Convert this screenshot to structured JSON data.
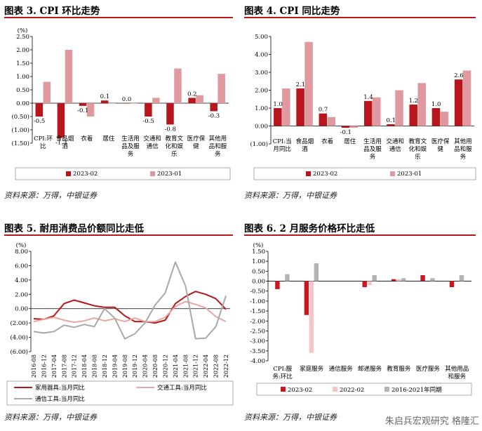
{
  "chart_data": [
    {
      "id": "c1",
      "type": "bar",
      "title": "图表 3. CPI 环比走势",
      "ylabel": "(%)",
      "ylim": [
        -1.5,
        2.5
      ],
      "yticks": [
        2.5,
        2.0,
        1.5,
        1.0,
        0.5,
        0.0,
        -0.5,
        -1.0,
        -1.5
      ],
      "ytick_labels": [
        "2.50",
        "2.00",
        "1.50",
        "1.00",
        "0.50",
        "0.00",
        "(0.50)",
        "(1.00)",
        "(1.50)"
      ],
      "categories": [
        "CPI:环\n比",
        "食品烟\n酒",
        "衣着",
        "居住",
        "生活用\n品及服\n务",
        "交通和\n通信",
        "教育文\n化和娱\n乐",
        "医疗保\n健",
        "其他用\n品和服\n务"
      ],
      "series": [
        {
          "name": "2023-02",
          "color": "#b8151c",
          "values": [
            -0.5,
            -1.3,
            -0.1,
            0.1,
            0.0,
            -0.5,
            -0.8,
            0.2,
            -0.3
          ],
          "labeled": true
        },
        {
          "name": "2023-01",
          "color": "#e09a9f",
          "values": [
            0.8,
            2.0,
            -0.5,
            0.0,
            0.0,
            0.2,
            1.3,
            0.3,
            1.1
          ],
          "labeled": false
        }
      ],
      "data_labels": [
        "-0.5",
        "-1.3",
        "-0.1",
        "0.1",
        "0.0",
        "-0.5",
        "-0.8",
        "0.2",
        "-0.3"
      ],
      "legend": "bottom"
    },
    {
      "id": "c2",
      "type": "bar",
      "title": "图表 4. CPI 同比走势",
      "ylim": [
        -1.0,
        5.0
      ],
      "yticks": [
        5.0,
        4.0,
        3.0,
        2.0,
        1.0,
        0.0,
        -1.0
      ],
      "ytick_labels": [
        "5.00",
        "4.00",
        "3.00",
        "2.00",
        "1.00",
        "0.00",
        "(1.00)"
      ],
      "categories": [
        "CPI:当\n月同比",
        "食品烟\n酒",
        "衣着",
        "居住",
        "生活用\n品及服\n务",
        "交通和\n通信",
        "教育文\n化和娱\n乐",
        "医疗保\n健",
        "其他用\n品和服\n务"
      ],
      "series": [
        {
          "name": "2023-02",
          "color": "#b8151c",
          "values": [
            1.0,
            2.1,
            0.7,
            -0.1,
            1.4,
            0.1,
            1.2,
            1.0,
            2.6
          ],
          "labeled": true
        },
        {
          "name": "2023-01",
          "color": "#e09a9f",
          "values": [
            2.1,
            4.7,
            0.5,
            -0.1,
            1.6,
            2.0,
            2.4,
            0.8,
            3.1
          ],
          "labeled": false
        }
      ],
      "data_labels": [
        "1.0",
        "2.1",
        "0.7",
        "-0.1",
        "1.4",
        "0.1",
        "1.2",
        "1.0",
        "2.6"
      ],
      "legend": "bottom"
    },
    {
      "id": "c3",
      "type": "line",
      "title": "图表 5. 耐用消费品价额同比走低",
      "ylabel": "(%)",
      "ylim": [
        -6.0,
        8.0
      ],
      "yticks": [
        8.0,
        6.0,
        4.0,
        2.0,
        0.0,
        -2.0,
        -4.0,
        -6.0
      ],
      "ytick_labels": [
        "8.00",
        "6.00",
        "4.00",
        "2.00",
        "0.00",
        "(2.00)",
        "(4.00)",
        "(6.00)"
      ],
      "x": [
        "2016-08",
        "2016-12",
        "2017-04",
        "2017-08",
        "2017-12",
        "2018-04",
        "2018-08",
        "2018-12",
        "2019-04",
        "2019-08",
        "2019-12",
        "2020-04",
        "2020-08",
        "2020-12",
        "2021-04",
        "2021-08",
        "2021-12",
        "2022-04",
        "2022-08",
        "2022-12"
      ],
      "series": [
        {
          "name": "家用器具:当月同比",
          "color": "#b8151c",
          "values": [
            -1.4,
            -1.5,
            -1.0,
            0.7,
            1.2,
            0.8,
            0.4,
            0.2,
            0.2,
            -1.0,
            -1.8,
            -1.8,
            -2.0,
            -1.6,
            0.7,
            1.7,
            2.4,
            2.0,
            1.4,
            -0.1
          ]
        },
        {
          "name": "交通工具:当月同比",
          "color": "#e8a7a2",
          "values": [
            -1.8,
            -1.5,
            -1.2,
            -1.6,
            -1.9,
            -1.7,
            -1.3,
            -1.7,
            -1.4,
            -1.8,
            -1.3,
            -1.8,
            -1.8,
            -1.2,
            0.3,
            1.0,
            0.6,
            0.1,
            -1.1,
            -1.8
          ]
        },
        {
          "name": "通信工具:当月同比",
          "color": "#a8a8a8",
          "values": [
            -3.2,
            -3.4,
            -3.2,
            -2.3,
            -2.6,
            -2.2,
            -2.5,
            0.0,
            -1.3,
            -4.2,
            -3.5,
            -2.0,
            0.5,
            2.2,
            6.5,
            3.2,
            -4.2,
            -4.1,
            -2.5,
            1.8
          ]
        }
      ],
      "legend": "bottom"
    },
    {
      "id": "c4",
      "type": "bar",
      "title": "图表 6. 2 月服务价格环比走低",
      "ylabel": "(%)",
      "ylim": [
        -4.0,
        1.5
      ],
      "yticks": [
        1.5,
        1.0,
        0.5,
        0.0,
        -0.5,
        -1.0,
        -1.5,
        -2.0,
        -2.5,
        -3.0,
        -3.5,
        -4.0
      ],
      "ytick_labels": [
        "1.50",
        "1.00",
        "0.50",
        "0.00",
        "-0.50",
        "-1.00",
        "-1.50",
        "-2.00",
        "-2.50",
        "-3.00",
        "-3.50",
        "-4.00"
      ],
      "categories": [
        "CPI:服\n务:环比",
        "家庭服务",
        "通信服务",
        "邮递服务",
        "教育服务",
        "医疗服务",
        "其他用品\n和服务"
      ],
      "series": [
        {
          "name": "2023-02",
          "color": "#c8171e",
          "values": [
            -0.4,
            -1.7,
            0.0,
            -0.3,
            0.1,
            0.3,
            -0.3
          ]
        },
        {
          "name": "2022-02",
          "color": "#f2c6c8",
          "values": [
            0.0,
            -3.6,
            0.0,
            -0.2,
            0.1,
            0.0,
            0.0
          ]
        },
        {
          "name": "2016-2021年同期",
          "color": "#b3b3b3",
          "values": [
            0.35,
            0.9,
            0.0,
            0.3,
            0.15,
            0.15,
            0.3
          ]
        }
      ],
      "legend": "bottom"
    }
  ],
  "sources": {
    "c1": "资料来源：万得，中银证券",
    "c2": "资料来源：万得，中银证券",
    "c3": "资料来源：万得，中银证券",
    "c4": "资料来源：万得，中银证券"
  },
  "watermark": "朱启兵宏观研究  格隆汇"
}
